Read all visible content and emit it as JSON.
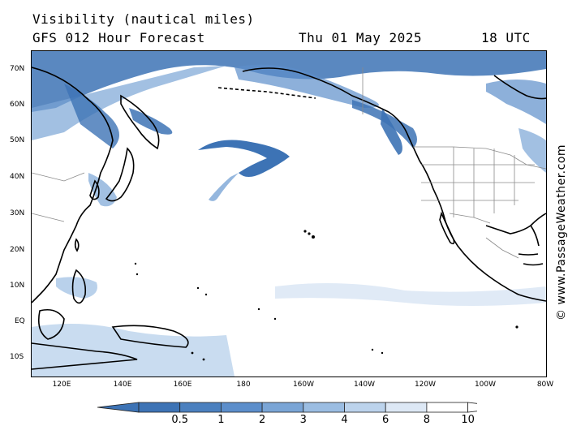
{
  "header": {
    "title": "Visibility (nautical miles)",
    "subtitle": "GFS 012 Hour Forecast",
    "date": "Thu 01 May 2025",
    "time": "18 UTC"
  },
  "map": {
    "lat_labels": [
      "70N",
      "60N",
      "50N",
      "40N",
      "30N",
      "20N",
      "10N",
      "EQ",
      "10S"
    ],
    "lon_labels": [
      "120E",
      "140E",
      "160E",
      "180",
      "160W",
      "140W",
      "120W",
      "100W",
      "80W"
    ],
    "land_color": "#ffffff",
    "ocean_color": "#ffffff",
    "coast_color": "#000000",
    "border_color": "#8a8a8a"
  },
  "credit": "© www.PassageWeather.com",
  "legend": {
    "labels": [
      "0.5",
      "1",
      "2",
      "3",
      "4",
      "6",
      "8",
      "10"
    ],
    "colors": [
      "#3d73b5",
      "#4b80bf",
      "#5c8ecb",
      "#7aa5d6",
      "#9bbde2",
      "#bcd3ec",
      "#dde8f5",
      "#ffffff"
    ]
  }
}
